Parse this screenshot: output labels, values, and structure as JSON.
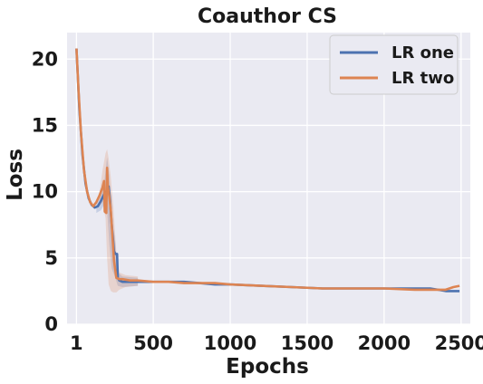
{
  "chart_data": {
    "type": "line",
    "title": "Coauthor CS",
    "xlabel": "Epochs",
    "ylabel": "Loss",
    "xlim": [
      -60,
      2560
    ],
    "ylim": [
      0,
      22
    ],
    "xticks": [
      1,
      500,
      1000,
      1500,
      2000,
      2500
    ],
    "yticks": [
      0,
      5,
      10,
      15,
      20
    ],
    "grid": true,
    "legend_position": "top-right",
    "background_color": "#eaeaf2",
    "series": [
      {
        "name": "LR one",
        "color": "#4c72b0",
        "x": [
          1,
          20,
          40,
          60,
          80,
          100,
          120,
          140,
          160,
          180,
          200,
          210,
          220,
          225,
          235,
          245,
          255,
          265,
          270,
          280,
          300,
          350,
          400,
          500,
          600,
          700,
          800,
          900,
          1000,
          1200,
          1400,
          1600,
          1800,
          2000,
          2200,
          2300,
          2350,
          2400,
          2450,
          2490
        ],
        "y": [
          20.8,
          16.2,
          12.8,
          10.6,
          9.5,
          9.0,
          8.8,
          8.9,
          9.3,
          9.8,
          10.1,
          10.4,
          9.3,
          8.3,
          6.9,
          5.5,
          5.3,
          5.3,
          3.5,
          3.3,
          3.2,
          3.2,
          3.2,
          3.2,
          3.2,
          3.2,
          3.1,
          3.0,
          3.0,
          2.9,
          2.8,
          2.7,
          2.7,
          2.7,
          2.7,
          2.7,
          2.6,
          2.5,
          2.5,
          2.5
        ],
        "band_x": [
          130,
          160,
          180,
          200,
          215,
          230,
          250,
          270,
          300,
          400
        ],
        "band_lower": [
          8.4,
          8.6,
          9.0,
          8.6,
          6.0,
          4.2,
          3.6,
          2.9,
          2.8,
          2.9
        ],
        "band_upper": [
          9.3,
          10.0,
          10.6,
          12.6,
          11.2,
          7.6,
          6.6,
          3.9,
          3.6,
          3.5
        ]
      },
      {
        "name": "LR two",
        "color": "#dd8452",
        "x": [
          1,
          15,
          30,
          50,
          70,
          90,
          110,
          130,
          150,
          170,
          180,
          185,
          195,
          200,
          205,
          215,
          225,
          235,
          245,
          260,
          280,
          300,
          350,
          400,
          500,
          600,
          700,
          800,
          900,
          1000,
          1200,
          1400,
          1600,
          1800,
          2000,
          2200,
          2300,
          2400,
          2450,
          2490
        ],
        "y": [
          20.8,
          17.6,
          14.5,
          11.6,
          10.0,
          9.2,
          8.9,
          9.2,
          9.7,
          10.3,
          10.8,
          8.5,
          8.4,
          11.8,
          10.4,
          9.6,
          8.5,
          6.6,
          4.8,
          3.5,
          3.4,
          3.4,
          3.3,
          3.3,
          3.2,
          3.2,
          3.1,
          3.1,
          3.1,
          3.0,
          2.9,
          2.8,
          2.7,
          2.7,
          2.7,
          2.6,
          2.6,
          2.6,
          2.8,
          2.9
        ],
        "band_x": [
          150,
          170,
          190,
          200,
          210,
          225,
          240,
          260,
          280,
          320,
          400
        ],
        "band_lower": [
          8.9,
          9.2,
          8.0,
          5.0,
          3.0,
          2.5,
          2.4,
          2.4,
          2.6,
          2.8,
          2.9
        ],
        "band_upper": [
          9.9,
          11.6,
          12.9,
          13.2,
          12.5,
          11.0,
          9.0,
          5.4,
          3.9,
          3.7,
          3.6
        ]
      }
    ]
  }
}
